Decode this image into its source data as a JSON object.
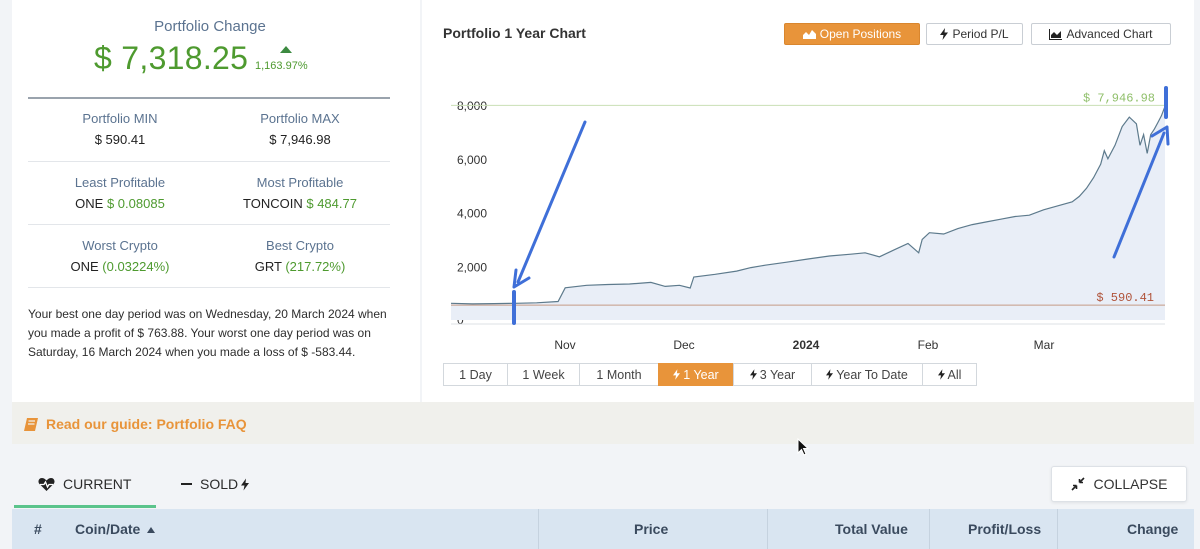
{
  "portfolio": {
    "title": "Portfolio Change",
    "value": "$ 7,318.25",
    "change_pct": "1,163.97%",
    "min_label": "Portfolio MIN",
    "min_value": "$ 590.41",
    "max_label": "Portfolio MAX",
    "max_value": "$ 7,946.98",
    "least_label": "Least Profitable",
    "least_coin": "ONE",
    "least_value": "$ 0.08085",
    "most_label": "Most Profitable",
    "most_coin": "TONCOIN",
    "most_value": "$ 484.77",
    "worst_label": "Worst Crypto",
    "worst_coin": "ONE",
    "worst_value": "(0.03224%)",
    "best_label": "Best Crypto",
    "best_coin": "GRT",
    "best_value": "(217.72%)",
    "summary": "Your best one day period was on Wednesday, 20 March 2024 when you made a profit of $ 763.88. Your worst one day period was on Saturday, 16 March 2024 when you made a loss of $ -583.44."
  },
  "chart_header": {
    "title": "Portfolio 1 Year Chart",
    "open_positions": "Open Positions",
    "period_pl": "Period P/L",
    "advanced_chart": "Advanced Chart"
  },
  "chart_data": {
    "type": "area",
    "ylim": [
      0,
      8500
    ],
    "yticks": [
      0,
      2000,
      4000,
      6000,
      8000
    ],
    "ytick_labels": [
      "0",
      "2,000",
      "4,000",
      "6,000",
      "8,000"
    ],
    "xtick_labels": [
      "Nov",
      "Dec",
      "2024",
      "Feb",
      "Mar"
    ],
    "max_label": "$ 7,946.98",
    "min_label": "$ 590.41",
    "max_value": 7946.98,
    "min_value": 590.41,
    "values": [
      [
        0,
        620
      ],
      [
        0.03,
        600
      ],
      [
        0.06,
        610
      ],
      [
        0.09,
        620
      ],
      [
        0.12,
        640
      ],
      [
        0.15,
        690
      ],
      [
        0.16,
        1200
      ],
      [
        0.19,
        1290
      ],
      [
        0.22,
        1320
      ],
      [
        0.25,
        1340
      ],
      [
        0.28,
        1400
      ],
      [
        0.3,
        1250
      ],
      [
        0.32,
        1290
      ],
      [
        0.335,
        1190
      ],
      [
        0.34,
        1600
      ],
      [
        0.37,
        1700
      ],
      [
        0.4,
        1820
      ],
      [
        0.42,
        1950
      ],
      [
        0.44,
        2040
      ],
      [
        0.47,
        2150
      ],
      [
        0.5,
        2270
      ],
      [
        0.53,
        2380
      ],
      [
        0.56,
        2450
      ],
      [
        0.58,
        2500
      ],
      [
        0.6,
        2350
      ],
      [
        0.62,
        2600
      ],
      [
        0.64,
        2850
      ],
      [
        0.655,
        2500
      ],
      [
        0.66,
        3000
      ],
      [
        0.67,
        3250
      ],
      [
        0.69,
        3200
      ],
      [
        0.71,
        3400
      ],
      [
        0.73,
        3550
      ],
      [
        0.75,
        3650
      ],
      [
        0.77,
        3750
      ],
      [
        0.79,
        3850
      ],
      [
        0.81,
        3900
      ],
      [
        0.83,
        4100
      ],
      [
        0.85,
        4250
      ],
      [
        0.87,
        4400
      ],
      [
        0.88,
        4600
      ],
      [
        0.89,
        4900
      ],
      [
        0.9,
        5300
      ],
      [
        0.91,
        5800
      ],
      [
        0.915,
        6300
      ],
      [
        0.92,
        6000
      ],
      [
        0.93,
        6500
      ],
      [
        0.94,
        7200
      ],
      [
        0.95,
        7550
      ],
      [
        0.96,
        7300
      ],
      [
        0.965,
        6500
      ],
      [
        0.97,
        6900
      ],
      [
        0.975,
        6200
      ],
      [
        0.98,
        6900
      ],
      [
        0.985,
        7100
      ],
      [
        0.99,
        7350
      ],
      [
        0.995,
        7600
      ],
      [
        1.0,
        7946.98
      ]
    ]
  },
  "ranges": {
    "day": "1 Day",
    "week": "1 Week",
    "month": "1 Month",
    "year": "1 Year",
    "three_year": "3 Year",
    "ytd": "Year To Date",
    "all": "All"
  },
  "guide": {
    "text": "Read our guide: Portfolio FAQ"
  },
  "tabs": {
    "current": "CURRENT",
    "sold": "SOLD",
    "collapse": "COLLAPSE"
  },
  "table": {
    "hash": "#",
    "coin_date": "Coin/Date",
    "price": "Price",
    "total_value": "Total Value",
    "profit_loss": "Profit/Loss",
    "change": "Change"
  },
  "colors": {
    "accent": "#e8943a",
    "green": "#4e9a2f",
    "annotation": "#3f6fd8",
    "fill": "#e9eef7"
  }
}
